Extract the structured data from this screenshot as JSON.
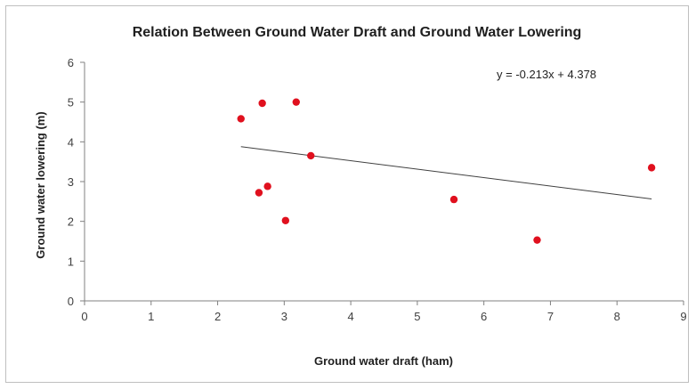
{
  "chart_data": {
    "type": "scatter",
    "title": "Relation Between Ground Water Draft and Ground Water Lowering",
    "xlabel": "Ground water draft (ham)",
    "ylabel": "Ground water lowering (m)",
    "xlim": [
      0,
      9
    ],
    "ylim": [
      0,
      6
    ],
    "xticks": [
      "0",
      "1",
      "2",
      "3",
      "4",
      "5",
      "6",
      "7",
      "8",
      "9"
    ],
    "yticks": [
      "0",
      "1",
      "2",
      "3",
      "4",
      "5",
      "6"
    ],
    "grid": false,
    "legend": false,
    "points": [
      {
        "x": 2.35,
        "y": 4.58
      },
      {
        "x": 2.67,
        "y": 4.97
      },
      {
        "x": 3.18,
        "y": 5.0
      },
      {
        "x": 3.4,
        "y": 3.65
      },
      {
        "x": 2.62,
        "y": 2.72
      },
      {
        "x": 2.75,
        "y": 2.88
      },
      {
        "x": 3.02,
        "y": 2.02
      },
      {
        "x": 5.55,
        "y": 2.55
      },
      {
        "x": 6.8,
        "y": 1.53
      },
      {
        "x": 8.52,
        "y": 3.35
      }
    ],
    "trendline": {
      "slope": -0.213,
      "intercept": 4.378,
      "x_start": 2.35,
      "x_end": 8.52,
      "equation": "y = -0.213x + 4.378"
    },
    "colors": {
      "point": "#e0101e",
      "trendline": "#404040",
      "axis": "#808080"
    }
  }
}
